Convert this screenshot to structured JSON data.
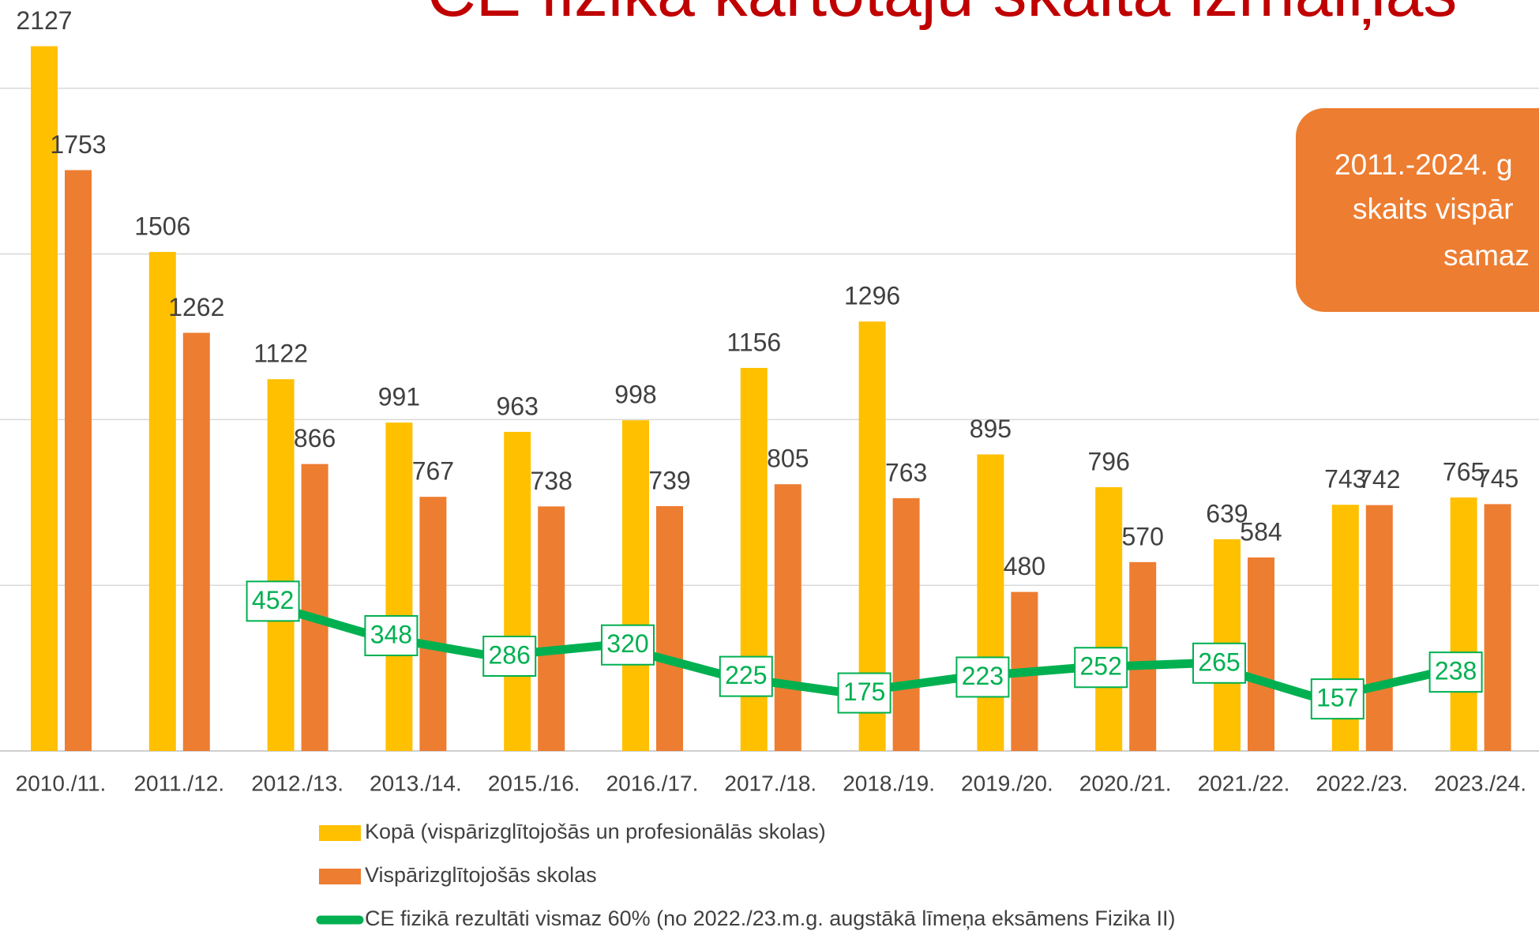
{
  "chart_data": {
    "type": "bar_line",
    "title": "CE fizikā kārtotāju skaita izmaiņas",
    "annotation": [
      "2011.-2024. g",
      "skaits vispār",
      "samaz"
    ],
    "categories": [
      "2010./11.",
      "2011./12.",
      "2012./13.",
      "2013./14.",
      "2015./16.",
      "2016./17.",
      "2017./18.",
      "2018./19.",
      "2019./20.",
      "2020./21.",
      "2021./22.",
      "2022./23.",
      "2023./24."
    ],
    "series": [
      {
        "name": "Kopā (vispārizglītojošās un profesionālās skolas)",
        "type": "bar",
        "color": "#ffc000",
        "values": [
          2127,
          1506,
          1122,
          991,
          963,
          998,
          1156,
          1296,
          895,
          796,
          639,
          743,
          765
        ]
      },
      {
        "name": "Vispārizglītojošās skolas",
        "type": "bar",
        "color": "#ed7d31",
        "values": [
          1753,
          1262,
          866,
          767,
          738,
          739,
          805,
          763,
          480,
          570,
          584,
          742,
          745
        ]
      },
      {
        "name": "CE fizikā rezultāti vismaz 60% (no 2022./23.m.g. augstākā līmeņa eksāmens Fizika II)",
        "type": "line",
        "color": "#00b050",
        "values": [
          null,
          null,
          452,
          348,
          286,
          320,
          225,
          175,
          223,
          252,
          265,
          157,
          238
        ]
      }
    ],
    "ylim": [
      0,
      2500
    ],
    "yticks": [
      0,
      500,
      1000,
      1500,
      2000
    ],
    "grid": true
  }
}
